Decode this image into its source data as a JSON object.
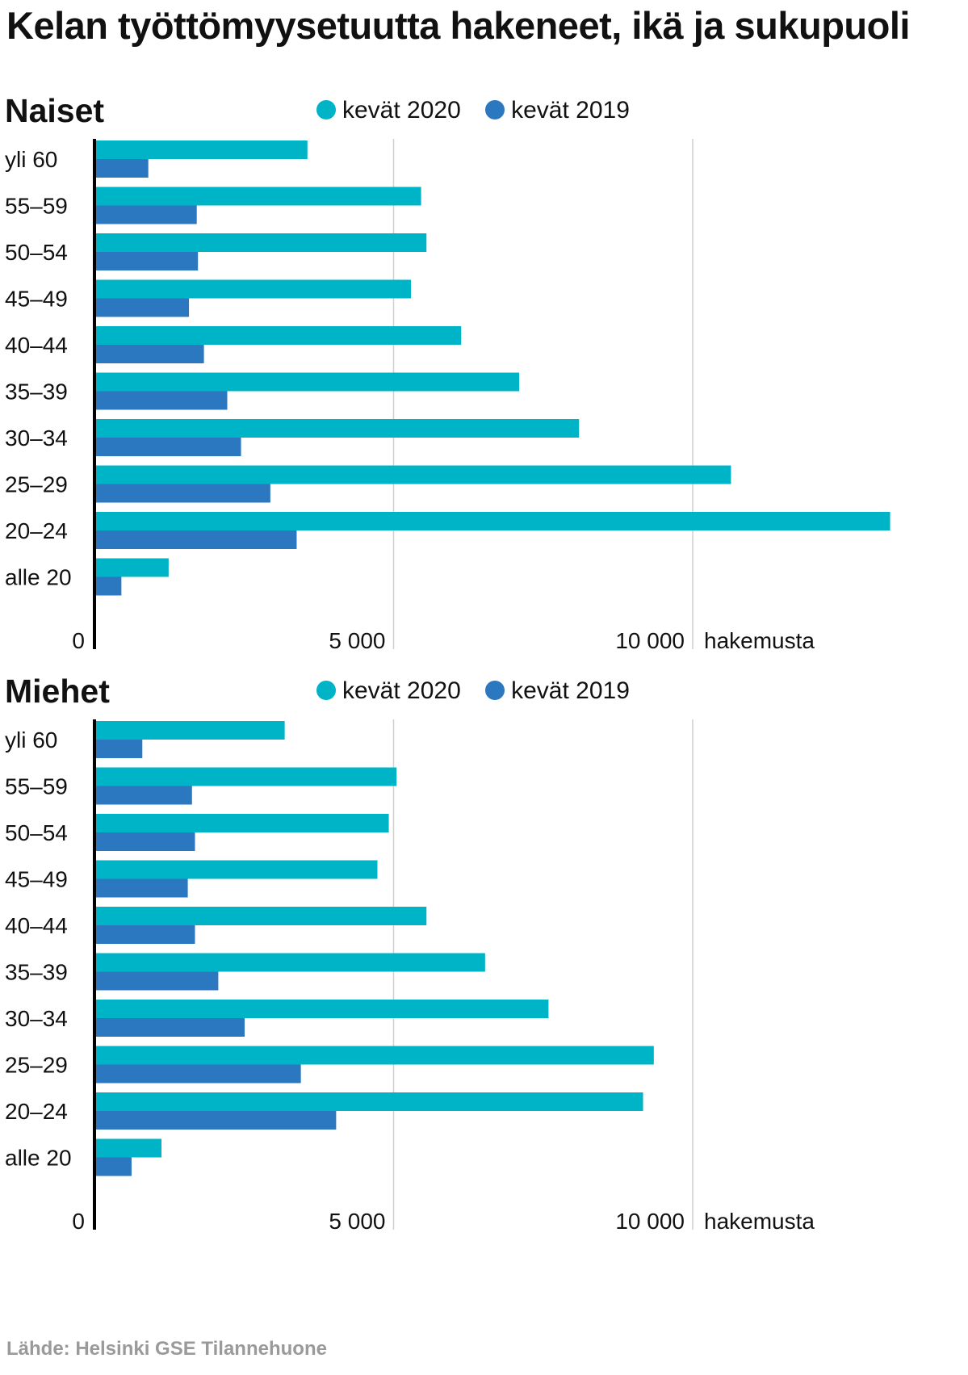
{
  "title": "Kelan työttömyysetuutta hakeneet, ikä ja sukupuoli",
  "source": "Lähde: Helsinki GSE Tilannehuone",
  "colors": {
    "series2020": "#00b4c8",
    "series2019": "#2b77c0",
    "grid": "#cfcfcf",
    "axis": "#000000"
  },
  "chart_data": [
    {
      "type": "bar",
      "orientation": "horizontal",
      "title": "Naiset",
      "categories": [
        "yli 60",
        "55–59",
        "50–54",
        "45–49",
        "40–44",
        "35–39",
        "30–34",
        "25–29",
        "20–24",
        "alle 20"
      ],
      "series": [
        {
          "name": "kevät 2020",
          "values": [
            3560,
            5460,
            5550,
            5290,
            6130,
            7100,
            8100,
            10640,
            13300,
            1240
          ]
        },
        {
          "name": "kevät 2019",
          "values": [
            900,
            1710,
            1730,
            1580,
            1830,
            2220,
            2450,
            2940,
            3380,
            450
          ]
        }
      ],
      "xticks": [
        0,
        5000,
        10000
      ],
      "xtick_labels": [
        "0",
        "5 000",
        "10 000"
      ],
      "xlabel": "hakemusta",
      "xlim": [
        0,
        13300
      ]
    },
    {
      "type": "bar",
      "orientation": "horizontal",
      "title": "Miehet",
      "categories": [
        "yli 60",
        "55–59",
        "50–54",
        "45–49",
        "40–44",
        "35–39",
        "30–34",
        "25–29",
        "20–24",
        "alle 20"
      ],
      "series": [
        {
          "name": "kevät 2020",
          "values": [
            3180,
            5050,
            4920,
            4730,
            5550,
            6530,
            7590,
            9350,
            9170,
            1120
          ]
        },
        {
          "name": "kevät 2019",
          "values": [
            800,
            1630,
            1680,
            1560,
            1680,
            2070,
            2510,
            3450,
            4040,
            620
          ]
        }
      ],
      "xticks": [
        0,
        5000,
        10000
      ],
      "xtick_labels": [
        "0",
        "5 000",
        "10 000"
      ],
      "xlabel": "hakemusta",
      "xlim": [
        0,
        13300
      ]
    }
  ]
}
